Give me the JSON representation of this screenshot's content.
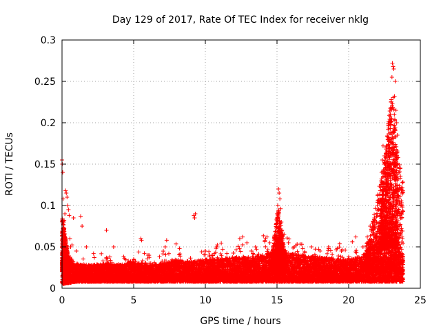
{
  "chart_data": {
    "type": "scatter",
    "title": "Day 129 of 2017, Rate Of TEC Index for receiver nklg",
    "xlabel": "GPS time / hours",
    "ylabel": "ROTI / TECUs",
    "xlim": [
      0,
      25
    ],
    "ylim": [
      0,
      0.3
    ],
    "x_ticks": [
      0,
      5,
      10,
      15,
      20,
      25
    ],
    "y_ticks": [
      0,
      0.05,
      0.1,
      0.15,
      0.2,
      0.25,
      0.3
    ],
    "x_tick_labels": [
      "0",
      "5",
      "10",
      "15",
      "20",
      "25"
    ],
    "y_tick_labels": [
      "0",
      "0.05",
      "0.1",
      "0.15",
      "0.2",
      "0.25",
      "0.3"
    ],
    "grid": true,
    "marker": "plus",
    "color": "#ff0000",
    "x_data_range": [
      0,
      23.8
    ],
    "series": [
      {
        "points": [
          [
            0.0,
            0.155
          ],
          [
            0.02,
            0.15
          ],
          [
            0.05,
            0.14
          ],
          [
            0.08,
            0.108
          ],
          [
            0.12,
            0.08
          ],
          [
            0.15,
            0.082
          ],
          [
            0.2,
            0.09
          ],
          [
            0.25,
            0.118
          ],
          [
            0.3,
            0.115
          ],
          [
            0.35,
            0.11
          ],
          [
            0.4,
            0.1
          ],
          [
            0.45,
            0.095
          ],
          [
            0.5,
            0.088
          ],
          [
            0.55,
            0.06
          ],
          [
            0.6,
            0.05
          ],
          [
            0.8,
            0.085
          ],
          [
            1.0,
            0.045
          ],
          [
            1.3,
            0.087
          ],
          [
            1.4,
            0.075
          ],
          [
            1.7,
            0.05
          ],
          [
            2.2,
            0.042
          ],
          [
            3.1,
            0.07
          ],
          [
            3.6,
            0.05
          ],
          [
            4.3,
            0.038
          ],
          [
            5.0,
            0.035
          ],
          [
            5.5,
            0.06
          ],
          [
            5.55,
            0.058
          ],
          [
            6.0,
            0.04
          ],
          [
            6.8,
            0.038
          ],
          [
            7.2,
            0.05
          ],
          [
            7.3,
            0.058
          ],
          [
            8.2,
            0.048
          ],
          [
            9.2,
            0.088
          ],
          [
            9.25,
            0.085
          ],
          [
            9.3,
            0.09
          ],
          [
            10.0,
            0.045
          ],
          [
            10.8,
            0.05
          ],
          [
            11.5,
            0.042
          ],
          [
            12.4,
            0.06
          ],
          [
            12.6,
            0.062
          ],
          [
            12.9,
            0.055
          ],
          [
            13.5,
            0.05
          ],
          [
            14.2,
            0.06
          ],
          [
            14.3,
            0.062
          ],
          [
            14.5,
            0.055
          ],
          [
            14.8,
            0.06
          ],
          [
            14.95,
            0.078
          ],
          [
            15.0,
            0.09
          ],
          [
            15.05,
            0.1
          ],
          [
            15.1,
            0.12
          ],
          [
            15.15,
            0.115
          ],
          [
            15.2,
            0.108
          ],
          [
            15.25,
            0.096
          ],
          [
            15.3,
            0.08
          ],
          [
            15.35,
            0.07
          ],
          [
            15.5,
            0.065
          ],
          [
            15.8,
            0.055
          ],
          [
            16.2,
            0.05
          ],
          [
            16.8,
            0.048
          ],
          [
            17.4,
            0.05
          ],
          [
            18.0,
            0.045
          ],
          [
            18.6,
            0.05
          ],
          [
            19.2,
            0.048
          ],
          [
            19.5,
            0.045
          ],
          [
            20.0,
            0.038
          ],
          [
            20.5,
            0.062
          ],
          [
            21.0,
            0.05
          ],
          [
            21.3,
            0.062
          ],
          [
            21.5,
            0.075
          ],
          [
            21.8,
            0.085
          ],
          [
            22.0,
            0.1
          ],
          [
            22.1,
            0.095
          ],
          [
            22.2,
            0.118
          ],
          [
            22.25,
            0.125
          ],
          [
            22.3,
            0.14
          ],
          [
            22.35,
            0.155
          ],
          [
            22.4,
            0.172
          ],
          [
            22.5,
            0.16
          ],
          [
            22.55,
            0.15
          ],
          [
            22.6,
            0.14
          ],
          [
            22.7,
            0.13
          ],
          [
            22.75,
            0.122
          ],
          [
            22.8,
            0.15
          ],
          [
            22.85,
            0.18
          ],
          [
            22.9,
            0.2
          ],
          [
            22.95,
            0.225
          ],
          [
            23.0,
            0.205
          ],
          [
            23.02,
            0.255
          ],
          [
            23.05,
            0.272
          ],
          [
            23.1,
            0.268
          ],
          [
            23.15,
            0.265
          ],
          [
            23.2,
            0.232
          ],
          [
            23.25,
            0.25
          ],
          [
            23.3,
            0.215
          ],
          [
            23.35,
            0.2
          ],
          [
            23.4,
            0.185
          ],
          [
            23.45,
            0.158
          ],
          [
            23.5,
            0.14
          ],
          [
            23.55,
            0.12
          ],
          [
            23.6,
            0.1
          ],
          [
            23.65,
            0.09
          ],
          [
            23.7,
            0.085
          ],
          [
            23.75,
            0.06
          ]
        ],
        "baseline": {
          "description_values": [
            [
              0,
              0.005,
              0.045
            ],
            [
              1,
              0.008,
              0.03
            ],
            [
              2,
              0.008,
              0.028
            ],
            [
              3,
              0.008,
              0.03
            ],
            [
              4,
              0.008,
              0.028
            ],
            [
              5,
              0.008,
              0.032
            ],
            [
              6,
              0.008,
              0.028
            ],
            [
              7,
              0.008,
              0.03
            ],
            [
              8,
              0.008,
              0.035
            ],
            [
              9,
              0.008,
              0.032
            ],
            [
              10,
              0.008,
              0.035
            ],
            [
              11,
              0.008,
              0.035
            ],
            [
              12,
              0.008,
              0.038
            ],
            [
              13,
              0.008,
              0.038
            ],
            [
              14,
              0.008,
              0.04
            ],
            [
              15,
              0.008,
              0.045
            ],
            [
              16,
              0.008,
              0.042
            ],
            [
              17,
              0.008,
              0.04
            ],
            [
              18,
              0.008,
              0.038
            ],
            [
              19,
              0.008,
              0.036
            ],
            [
              20,
              0.008,
              0.035
            ],
            [
              21,
              0.008,
              0.04
            ],
            [
              22,
              0.008,
              0.055
            ],
            [
              23,
              0.008,
              0.06
            ],
            [
              23.8,
              0.008,
              0.04
            ]
          ]
        }
      }
    ]
  }
}
